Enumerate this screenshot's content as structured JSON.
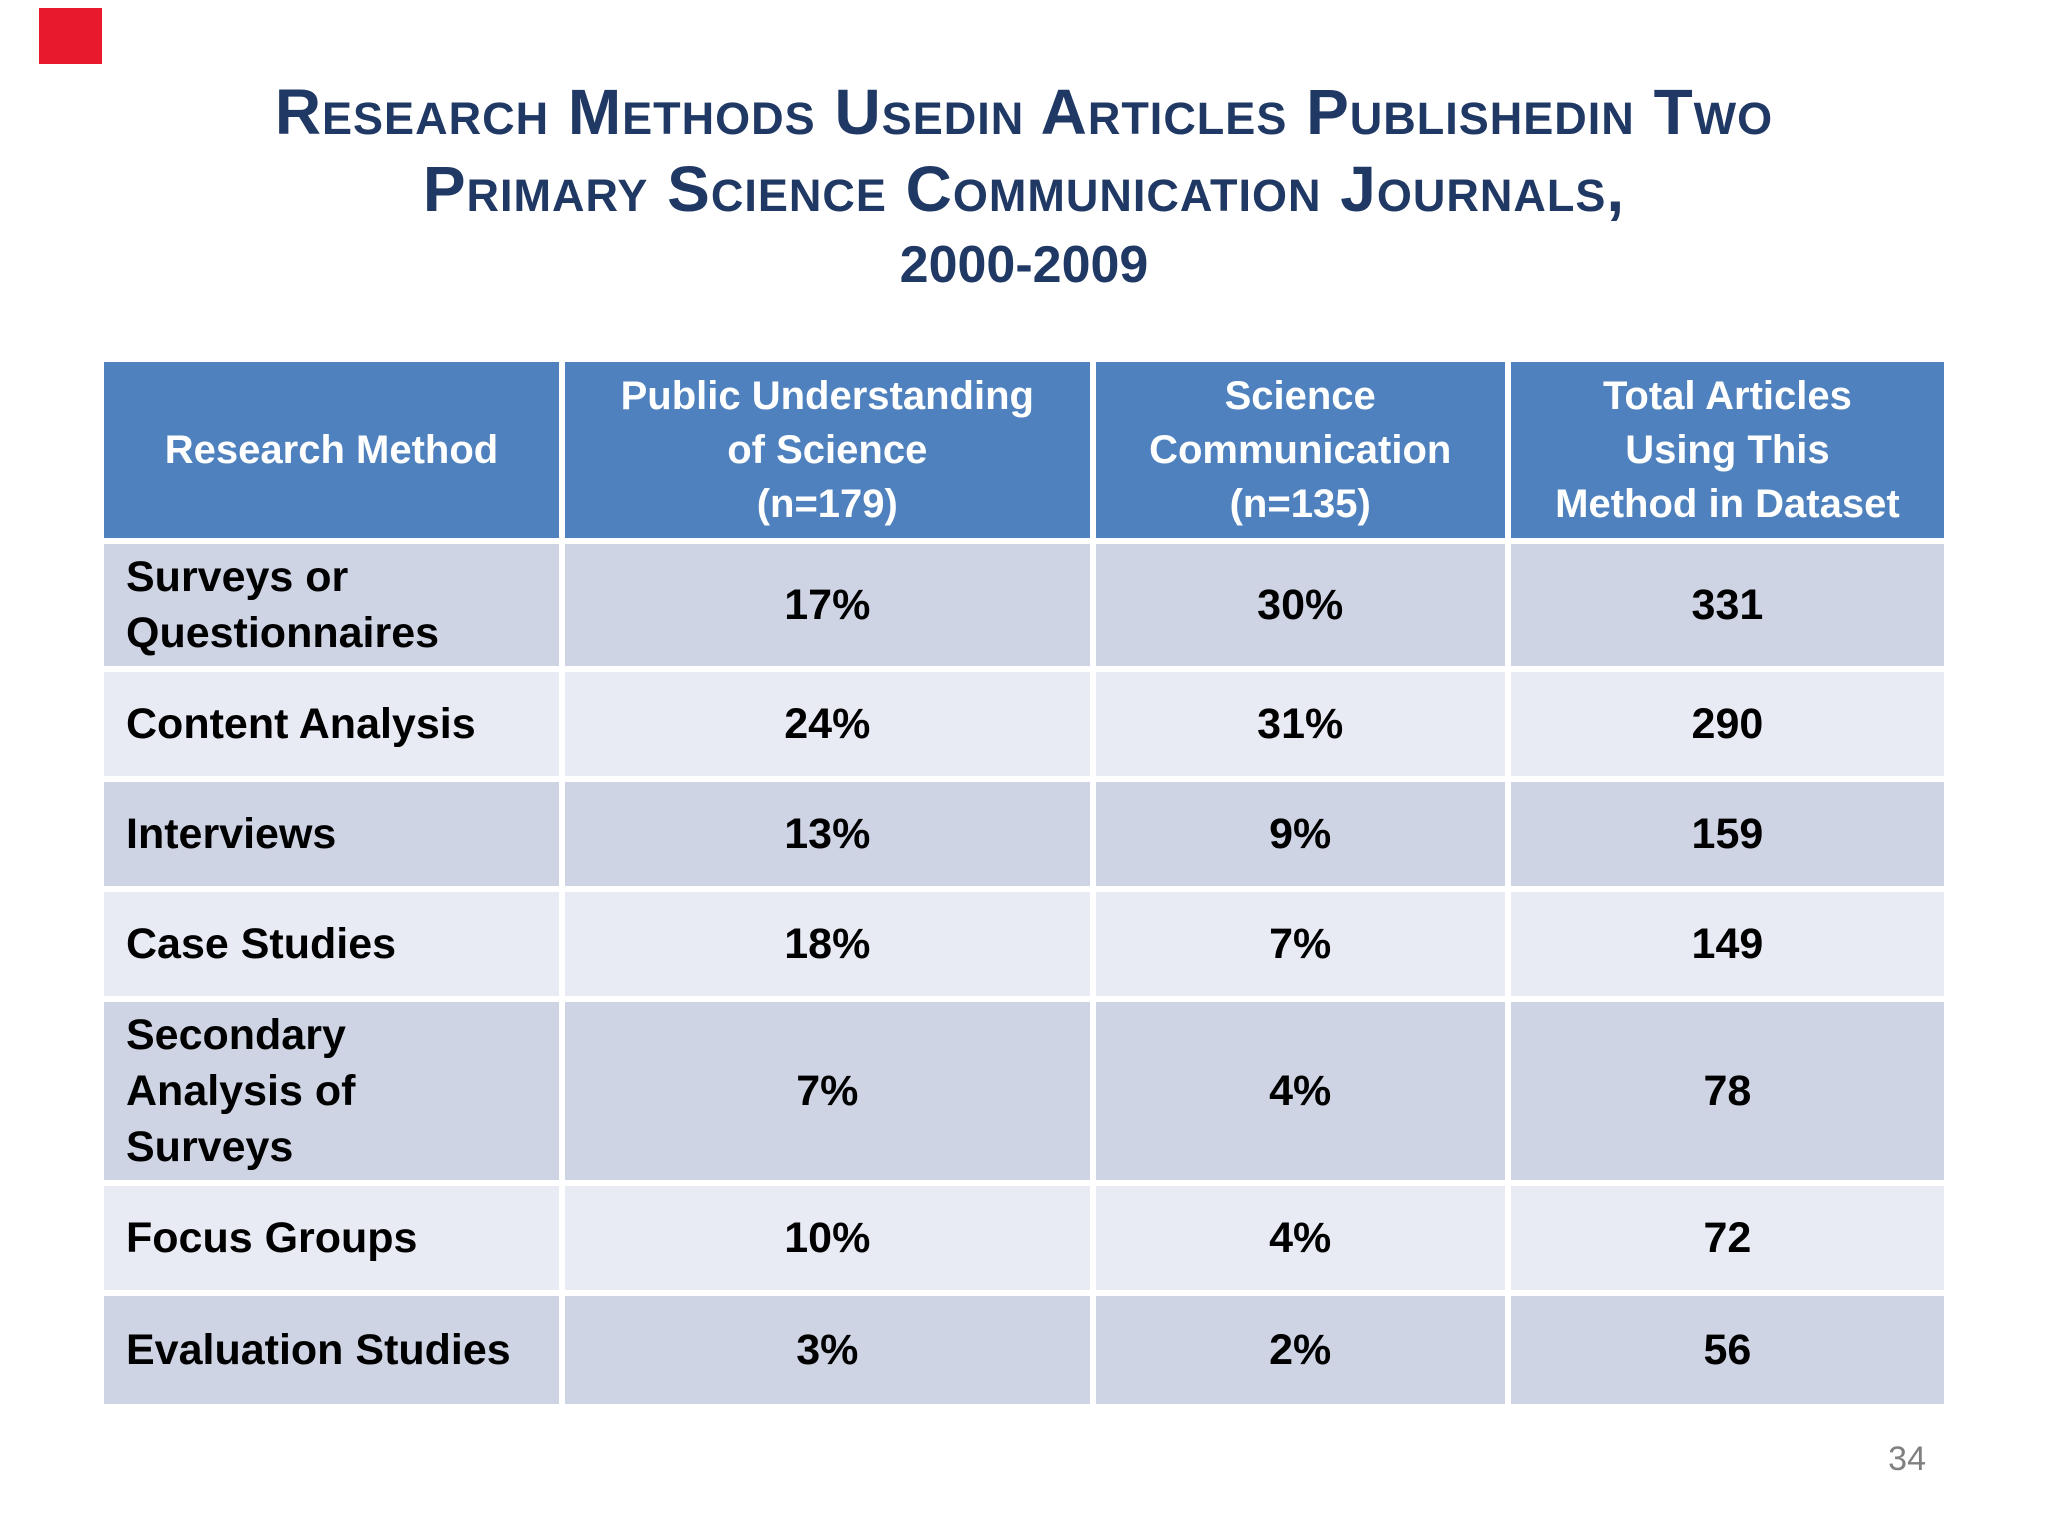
{
  "slide": {
    "title": {
      "line1": "Research Methods Usedin Articles Publishedin Two",
      "line2": "Primary Science Communication Journals,",
      "line3": "2000-2009"
    },
    "page_number": "34",
    "colors": {
      "title_text": "#1F3864",
      "header_bg": "#4E81BD",
      "header_text": "#FFFFFF",
      "row_dark": "#CED4E4",
      "row_light": "#E9EBF4",
      "body_text": "#000000",
      "page_number_text": "#808080",
      "marker_red": "#E8192C"
    }
  },
  "table": {
    "headers": [
      "Research Method",
      "Public Understanding\nof Science\n(n=179)",
      "Science\nCommunication\n(n=135)",
      "Total Articles\nUsing This\nMethod in Dataset"
    ],
    "rows": [
      {
        "method": "Surveys or\nQuestionnaires",
        "pus": "17%",
        "sc": "30%",
        "total": "331"
      },
      {
        "method": "Content Analysis",
        "pus": "24%",
        "sc": "31%",
        "total": "290"
      },
      {
        "method": "Interviews",
        "pus": "13%",
        "sc": "9%",
        "total": "159"
      },
      {
        "method": "Case Studies",
        "pus": "18%",
        "sc": "7%",
        "total": "149"
      },
      {
        "method": "Secondary\nAnalysis of\nSurveys",
        "pus": "7%",
        "sc": "4%",
        "total": "78"
      },
      {
        "method": "Focus Groups",
        "pus": "10%",
        "sc": "4%",
        "total": "72"
      },
      {
        "method": "Evaluation Studies",
        "pus": "3%",
        "sc": "2%",
        "total": "56"
      }
    ]
  },
  "chart_data": {
    "type": "table",
    "title": "Research Methods Used in Articles Published in Two Primary Science Communication Journals, 2000-2009",
    "columns": [
      "Research Method",
      "Public Understanding of Science (n=179)",
      "Science Communication (n=135)",
      "Total Articles Using This Method in Dataset"
    ],
    "rows": [
      [
        "Surveys or Questionnaires",
        "17%",
        "30%",
        "331"
      ],
      [
        "Content Analysis",
        "24%",
        "31%",
        "290"
      ],
      [
        "Interviews",
        "13%",
        "9%",
        "159"
      ],
      [
        "Case Studies",
        "18%",
        "7%",
        "149"
      ],
      [
        "Secondary Analysis of Surveys",
        "7%",
        "4%",
        "78"
      ],
      [
        "Focus Groups",
        "10%",
        "4%",
        "72"
      ],
      [
        "Evaluation Studies",
        "3%",
        "2%",
        "56"
      ]
    ]
  }
}
